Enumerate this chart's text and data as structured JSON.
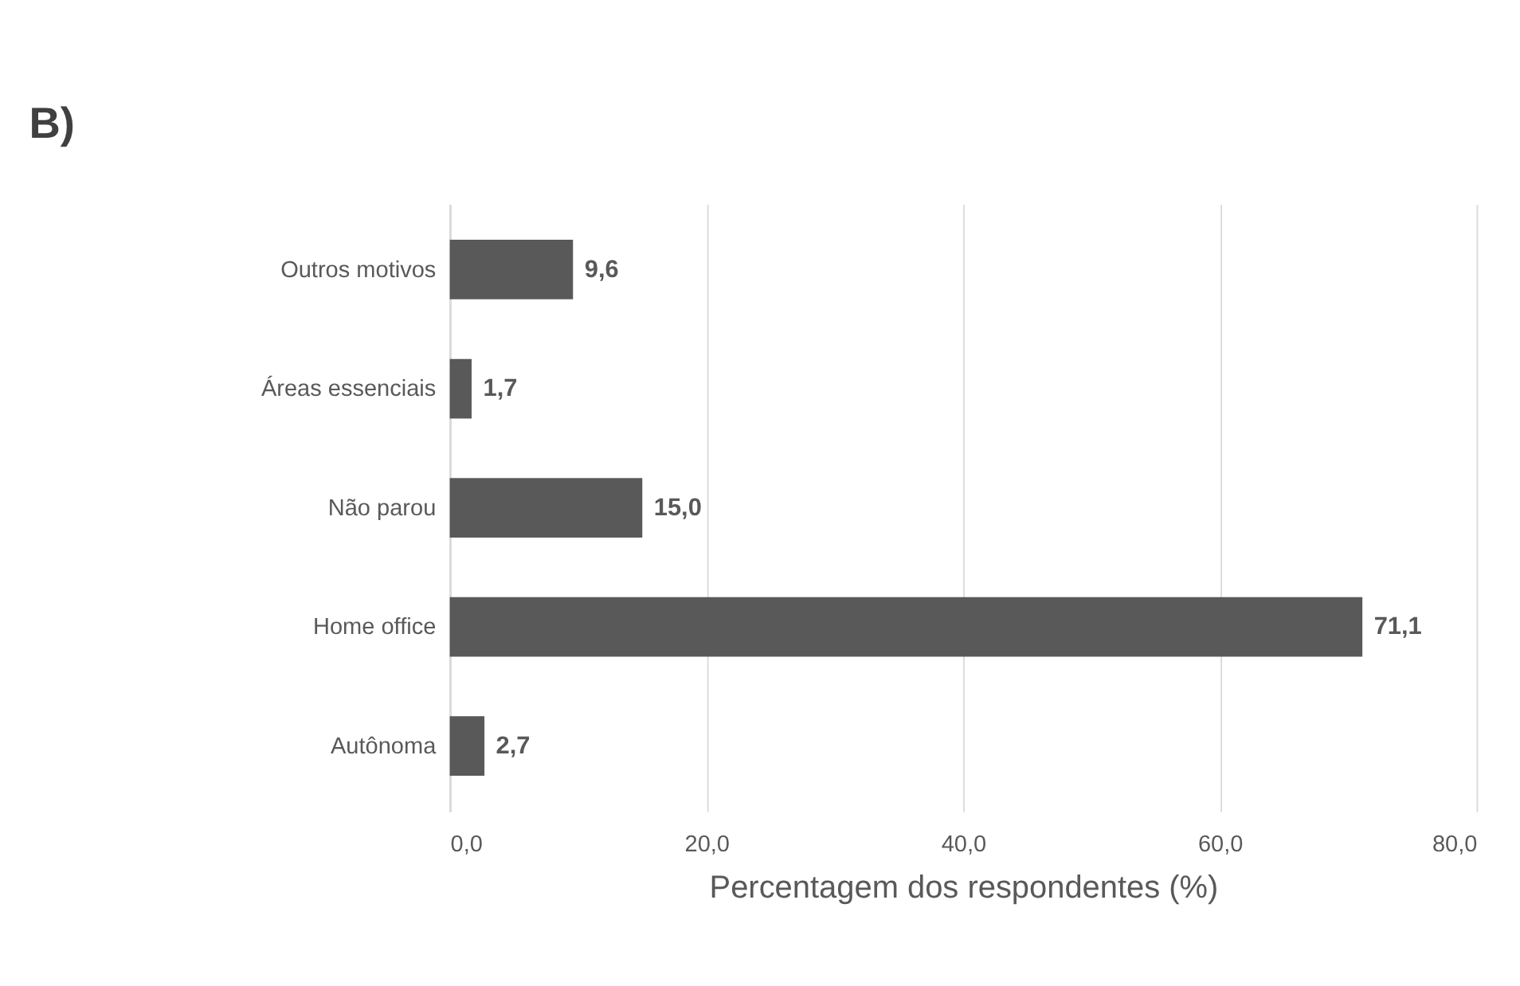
{
  "chart_data": {
    "type": "bar",
    "orientation": "horizontal",
    "title": "B)",
    "xlabel": "Percentagem dos respondentes (%)",
    "categories": [
      "Outros motivos",
      "Áreas essenciais",
      "Não parou",
      "Home office",
      "Autônoma"
    ],
    "values": [
      9.6,
      1.7,
      15.0,
      71.1,
      2.7
    ],
    "value_labels": [
      "9,6",
      "1,7",
      "15,0",
      "71,1",
      "2,7"
    ],
    "color": "#595959",
    "xlim": [
      0,
      80
    ],
    "xticks": [
      {
        "value": 0,
        "label": "0,0"
      },
      {
        "value": 20,
        "label": "20,0"
      },
      {
        "value": 40,
        "label": "40,0"
      },
      {
        "value": 60,
        "label": "60,0"
      },
      {
        "value": 80,
        "label": "80,0"
      }
    ],
    "grid": "x"
  }
}
